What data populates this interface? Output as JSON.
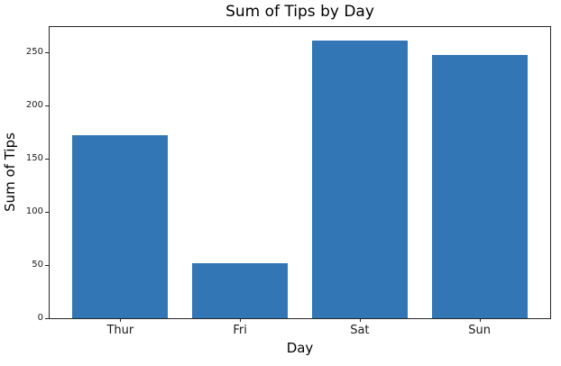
{
  "chart_data": {
    "type": "bar",
    "title": "Sum of Tips by Day",
    "xlabel": "Day",
    "ylabel": "Sum of Tips",
    "categories": [
      "Thur",
      "Fri",
      "Sat",
      "Sun"
    ],
    "values": [
      171.83,
      51.96,
      260.4,
      247.46
    ],
    "yticks": [
      0,
      50,
      100,
      150,
      200,
      250
    ],
    "ylim": [
      0,
      273.4
    ],
    "xlim": [
      -0.59,
      3.59
    ],
    "bar_width_units": 0.8,
    "bar_color": "#3276b5",
    "frame_color": "#262626",
    "grid": false,
    "legend_position": "none"
  }
}
